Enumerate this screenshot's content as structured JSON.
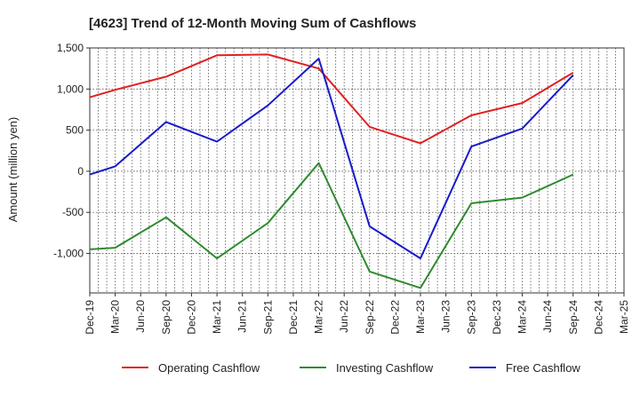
{
  "chart_data": {
    "type": "line",
    "title": "[4623]  Trend of 12-Month Moving Sum of Cashflows",
    "xlabel": "",
    "ylabel": "Amount (million yen)",
    "ylim": [
      -1480,
      1500
    ],
    "yticks": [
      -1000,
      -500,
      0,
      500,
      1000,
      1500
    ],
    "ytick_labels": [
      "-1,000",
      "-500",
      "0",
      "500",
      "1,000",
      "1,500"
    ],
    "categories": [
      "Dec-19",
      "Mar-20",
      "Jun-20",
      "Sep-20",
      "Dec-20",
      "Mar-21",
      "Jun-21",
      "Sep-21",
      "Dec-21",
      "Mar-22",
      "Jun-22",
      "Sep-22",
      "Dec-22",
      "Mar-23",
      "Jun-23",
      "Sep-23",
      "Dec-23",
      "Mar-24",
      "Jun-24",
      "Sep-24",
      "Dec-24",
      "Mar-25"
    ],
    "x": [
      "Dec-19",
      "Mar-20",
      "Sep-20",
      "Mar-21",
      "Sep-21",
      "Mar-22",
      "Sep-22",
      "Mar-23",
      "Sep-23",
      "Mar-24",
      "Sep-24"
    ],
    "grid": true,
    "legend_position": "bottom",
    "series": [
      {
        "name": "Operating Cashflow",
        "color": "#e02020",
        "values": [
          900,
          990,
          1150,
          1410,
          1420,
          1250,
          540,
          340,
          680,
          830,
          1200
        ]
      },
      {
        "name": "Investing Cashflow",
        "color": "#2e8b2e",
        "values": [
          -950,
          -930,
          -560,
          -1060,
          -630,
          100,
          -1220,
          -1420,
          -390,
          -320,
          -40
        ]
      },
      {
        "name": "Free Cashflow",
        "color": "#1a1acc",
        "values": [
          -40,
          60,
          600,
          360,
          800,
          1370,
          -670,
          -1060,
          300,
          520,
          1170
        ]
      }
    ]
  }
}
